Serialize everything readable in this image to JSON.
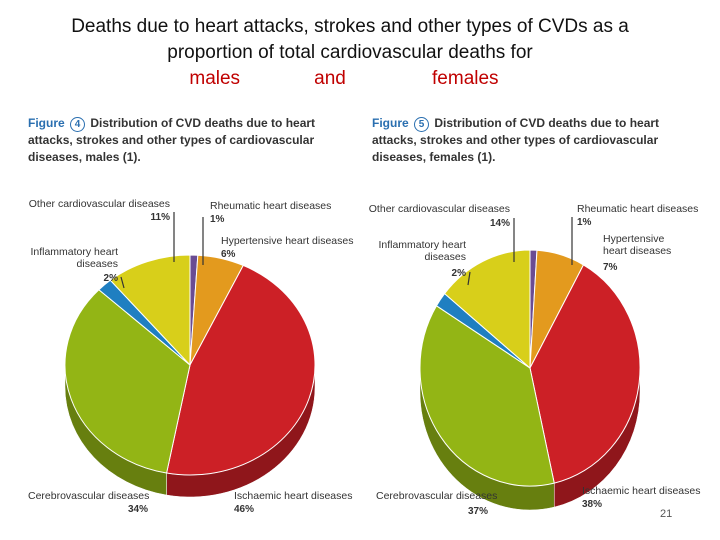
{
  "title": {
    "line1": "Deaths due to heart attacks, strokes and other types of CVDs as a",
    "line2": "proportion of total cardiovascular deaths for",
    "males": "males",
    "and": "and",
    "females": "females"
  },
  "page_number": "21",
  "chart_data": [
    {
      "type": "pie",
      "figure_word": "Figure",
      "figure_number": "4",
      "title": "Distribution of CVD deaths due to heart attacks, strokes and other types of cardiovascular diseases, males (1).",
      "slices": [
        {
          "label": "Rheumatic heart diseases",
          "value": 1,
          "value_label": "1%",
          "color": "#6a4c93"
        },
        {
          "label": "Hypertensive heart diseases",
          "value": 6,
          "value_label": "6%",
          "color": "#e39a1e"
        },
        {
          "label": "Ischaemic heart diseases",
          "value": 46,
          "value_label": "46%",
          "color": "#cc2026"
        },
        {
          "label": "Cerebrovascular diseases",
          "value": 34,
          "value_label": "34%",
          "color": "#93b515"
        },
        {
          "label": "Inflammatory heart diseases",
          "value": 2,
          "value_label": "2%",
          "color": "#1f7fc1"
        },
        {
          "label": "Other cardiovascular diseases",
          "value": 11,
          "value_label": "11%",
          "color": "#d8cf1a"
        }
      ]
    },
    {
      "type": "pie",
      "figure_word": "Figure",
      "figure_number": "5",
      "title": "Distribution of CVD deaths due to heart attacks, strokes and other types of cardiovascular diseases, females (1).",
      "slices": [
        {
          "label": "Rheumatic heart diseases",
          "value": 1,
          "value_label": "1%",
          "color": "#6a4c93"
        },
        {
          "label": "Hypertensive heart diseases",
          "value": 7,
          "value_label": "7%",
          "color": "#e39a1e"
        },
        {
          "label": "Ischaemic heart diseases",
          "value": 38,
          "value_label": "38%",
          "color": "#cc2026"
        },
        {
          "label": "Cerebrovascular diseases",
          "value": 37,
          "value_label": "37%",
          "color": "#93b515"
        },
        {
          "label": "Inflammatory heart diseases",
          "value": 2,
          "value_label": "2%",
          "color": "#1f7fc1"
        },
        {
          "label": "Other cardiovascular diseases",
          "value": 14,
          "value_label": "14%",
          "color": "#d8cf1a"
        }
      ]
    }
  ]
}
